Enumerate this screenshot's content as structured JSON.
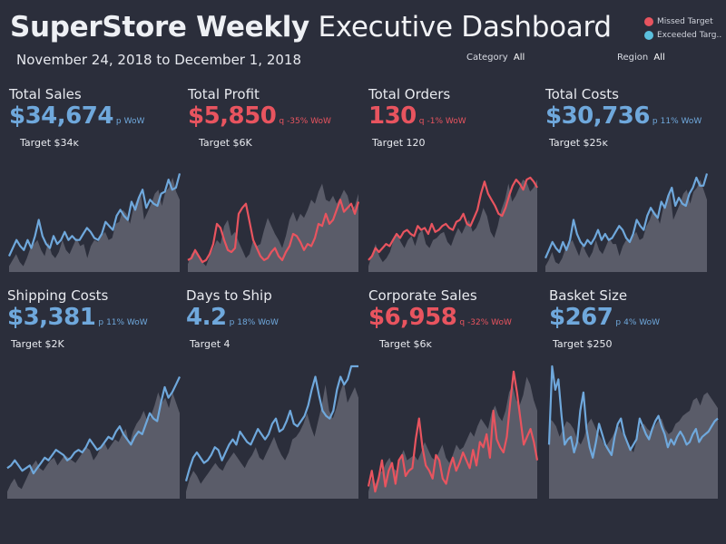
{
  "header": {
    "title_bold": "SuperStore Weekly",
    "title_light": "Executive Dashboard",
    "date_range": "November 24, 2018 to December 1, 2018"
  },
  "filters": [
    {
      "label": "Category",
      "value": "All"
    },
    {
      "label": "Region",
      "value": "All"
    }
  ],
  "legend": [
    {
      "label": "Missed Target",
      "color": "#e8545f"
    },
    {
      "label": "Exceeded Targ..",
      "color": "#5bc0de"
    }
  ],
  "colors": {
    "good": "#6fa8dc",
    "bad": "#e8545f",
    "area": "#5a5c69",
    "background": "#2b2e3b"
  },
  "kpis": [
    {
      "title": "Total Sales",
      "value": "$34,674",
      "arrow": "p",
      "delta": "WoW",
      "target": "Target $34ᴋ",
      "status": "good"
    },
    {
      "title": "Total Profit",
      "value": "$5,850",
      "arrow": "q",
      "delta": "-35% WoW",
      "target": "Target $6K",
      "status": "bad"
    },
    {
      "title": "Total Orders",
      "value": "130",
      "arrow": "q",
      "delta": "-1% WoW",
      "target": "Target 120",
      "status": "bad"
    },
    {
      "title": "Total Costs",
      "value": "$30,736",
      "arrow": "p",
      "delta": "11% WoW",
      "target": "Target $25ᴋ",
      "status": "good"
    },
    {
      "title": "Shipping Costs",
      "value": "$3,381",
      "arrow": "p",
      "delta": "11% WoW",
      "target": "Target $2K",
      "status": "good"
    },
    {
      "title": "Days to Ship",
      "value": "4.2",
      "arrow": "p",
      "delta": "18% WoW",
      "target": "Target 4",
      "status": "good"
    },
    {
      "title": "Corporate Sales",
      "value": "$6,958",
      "arrow": "q",
      "delta": "-32% WoW",
      "target": "Target $6ᴋ",
      "status": "bad"
    },
    {
      "title": "Basket Size",
      "value": "$267",
      "arrow": "p",
      "delta": "4% WoW",
      "target": "Target $250",
      "status": "good"
    }
  ],
  "chart_data": [
    {
      "type": "area",
      "chart": "Total Sales",
      "line": [
        14,
        22,
        30,
        24,
        20,
        30,
        22,
        34,
        50,
        34,
        26,
        22,
        34,
        26,
        30,
        38,
        30,
        34,
        30,
        30,
        36,
        42,
        38,
        32,
        30,
        36,
        48,
        44,
        40,
        54,
        60,
        54,
        50,
        68,
        60,
        72,
        80,
        62,
        70,
        66,
        64,
        76,
        78,
        90,
        80,
        82,
        96
      ],
      "area": [
        4,
        10,
        16,
        8,
        4,
        12,
        22,
        26,
        30,
        20,
        14,
        28,
        16,
        12,
        18,
        30,
        20,
        16,
        24,
        32,
        24,
        26,
        12,
        24,
        30,
        28,
        34,
        38,
        30,
        32,
        46,
        48,
        60,
        56,
        46,
        62,
        70,
        78,
        50,
        58,
        66,
        76,
        80,
        64,
        78,
        82,
        92,
        78,
        70
      ]
    },
    {
      "type": "area",
      "chart": "Total Profit",
      "line": [
        10,
        12,
        20,
        14,
        8,
        10,
        16,
        26,
        46,
        42,
        30,
        20,
        18,
        22,
        56,
        62,
        66,
        48,
        30,
        22,
        14,
        10,
        12,
        18,
        22,
        14,
        10,
        18,
        24,
        36,
        34,
        28,
        20,
        26,
        24,
        32,
        46,
        44,
        56,
        46,
        50,
        60,
        70,
        58,
        62,
        66,
        56,
        68
      ],
      "area": [
        6,
        16,
        20,
        12,
        8,
        4,
        14,
        22,
        30,
        26,
        44,
        50,
        34,
        38,
        28,
        20,
        12,
        16,
        30,
        24,
        26,
        40,
        52,
        44,
        36,
        30,
        22,
        34,
        50,
        58,
        48,
        56,
        52,
        60,
        70,
        66,
        78,
        86,
        70,
        68,
        74,
        66,
        72,
        80,
        74,
        60,
        64,
        76
      ]
    },
    {
      "type": "area",
      "chart": "Total Orders",
      "line": [
        10,
        14,
        22,
        18,
        22,
        26,
        24,
        30,
        36,
        32,
        38,
        40,
        36,
        34,
        44,
        40,
        42,
        36,
        46,
        38,
        40,
        44,
        46,
        42,
        40,
        48,
        50,
        56,
        46,
        44,
        52,
        60,
        76,
        88,
        76,
        70,
        64,
        56,
        54,
        62,
        74,
        84,
        90,
        86,
        80,
        90,
        92,
        88,
        82
      ],
      "area": [
        4,
        16,
        26,
        14,
        8,
        12,
        18,
        30,
        36,
        28,
        22,
        30,
        34,
        24,
        36,
        40,
        26,
        22,
        30,
        32,
        36,
        38,
        28,
        24,
        34,
        42,
        36,
        44,
        50,
        38,
        42,
        50,
        62,
        54,
        38,
        32,
        44,
        60,
        70,
        86,
        68,
        74,
        82,
        90,
        88,
        78,
        82,
        90
      ]
    },
    {
      "type": "area",
      "chart": "Total Costs",
      "line": [
        12,
        20,
        28,
        22,
        18,
        28,
        20,
        30,
        50,
        36,
        28,
        24,
        30,
        26,
        32,
        40,
        30,
        36,
        30,
        32,
        38,
        44,
        40,
        32,
        28,
        36,
        50,
        44,
        40,
        54,
        62,
        56,
        52,
        68,
        62,
        74,
        82,
        64,
        72,
        66,
        64,
        76,
        82,
        92,
        84,
        84,
        96
      ],
      "area": [
        4,
        10,
        18,
        8,
        6,
        12,
        22,
        26,
        30,
        22,
        14,
        26,
        18,
        12,
        18,
        30,
        20,
        16,
        24,
        32,
        26,
        26,
        14,
        24,
        30,
        28,
        34,
        38,
        30,
        32,
        44,
        50,
        60,
        56,
        46,
        62,
        70,
        78,
        50,
        58,
        66,
        76,
        80,
        66,
        78,
        82,
        90,
        80,
        70
      ]
    },
    {
      "type": "area",
      "chart": "Shipping Costs",
      "line": [
        22,
        24,
        28,
        24,
        20,
        22,
        24,
        18,
        22,
        26,
        30,
        28,
        32,
        36,
        34,
        32,
        28,
        30,
        34,
        36,
        34,
        38,
        44,
        40,
        36,
        38,
        42,
        46,
        44,
        50,
        54,
        48,
        44,
        40,
        46,
        50,
        48,
        56,
        64,
        60,
        58,
        72,
        84,
        76,
        80,
        86,
        92
      ],
      "area": [
        4,
        10,
        14,
        8,
        6,
        12,
        18,
        24,
        28,
        22,
        20,
        24,
        28,
        30,
        24,
        28,
        32,
        30,
        28,
        26,
        30,
        34,
        38,
        36,
        28,
        32,
        38,
        42,
        36,
        40,
        44,
        42,
        48,
        52,
        40,
        50,
        56,
        60,
        66,
        58,
        62,
        70,
        80,
        72,
        76,
        68,
        80,
        72,
        64
      ]
    },
    {
      "type": "area",
      "chart": "Days to Ship",
      "line": [
        12,
        22,
        30,
        34,
        30,
        26,
        28,
        32,
        38,
        36,
        28,
        34,
        40,
        44,
        40,
        50,
        46,
        42,
        40,
        46,
        52,
        48,
        44,
        48,
        56,
        60,
        50,
        52,
        58,
        66,
        56,
        54,
        58,
        62,
        70,
        82,
        92,
        78,
        66,
        62,
        60,
        66,
        82,
        92,
        86,
        90,
        100,
        100,
        100
      ],
      "area": [
        4,
        14,
        20,
        16,
        10,
        14,
        18,
        22,
        26,
        22,
        20,
        26,
        30,
        34,
        30,
        26,
        22,
        28,
        32,
        38,
        30,
        28,
        34,
        40,
        46,
        38,
        32,
        28,
        34,
        44,
        46,
        50,
        56,
        64,
        54,
        46,
        58,
        70,
        86,
        66,
        60,
        68,
        80,
        88,
        72,
        78,
        84,
        76
      ]
    },
    {
      "type": "area",
      "chart": "Corporate Sales",
      "line": [
        8,
        20,
        4,
        14,
        28,
        8,
        20,
        26,
        10,
        28,
        32,
        16,
        20,
        22,
        44,
        60,
        38,
        24,
        20,
        14,
        32,
        28,
        14,
        10,
        22,
        30,
        20,
        26,
        34,
        28,
        22,
        36,
        24,
        42,
        38,
        48,
        30,
        66,
        44,
        38,
        34,
        46,
        72,
        96,
        80,
        60,
        40,
        46,
        52,
        42,
        28
      ],
      "area": [
        4,
        14,
        10,
        18,
        20,
        26,
        30,
        22,
        20,
        30,
        36,
        28,
        30,
        32,
        28,
        34,
        42,
        36,
        30,
        28,
        34,
        40,
        30,
        26,
        32,
        40,
        36,
        38,
        44,
        50,
        46,
        54,
        60,
        56,
        52,
        64,
        70,
        62,
        58,
        66,
        80,
        86,
        74,
        70,
        78,
        92,
        86,
        74,
        66
      ]
    },
    {
      "type": "area",
      "chart": "Basket Size",
      "line": [
        40,
        100,
        82,
        90,
        62,
        40,
        44,
        46,
        34,
        42,
        66,
        80,
        52,
        38,
        30,
        42,
        56,
        48,
        40,
        36,
        32,
        46,
        56,
        60,
        48,
        42,
        36,
        40,
        44,
        60,
        54,
        48,
        44,
        52,
        58,
        62,
        54,
        48,
        38,
        44,
        40,
        46,
        50,
        46,
        40,
        42,
        48,
        52,
        42,
        46,
        48,
        50,
        54,
        58,
        60
      ],
      "area": [
        60,
        58,
        54,
        46,
        52,
        58,
        56,
        52,
        44,
        40,
        46,
        56,
        60,
        54,
        48,
        44,
        38,
        42,
        46,
        52,
        54,
        48,
        42,
        38,
        34,
        44,
        54,
        56,
        52,
        50,
        54,
        58,
        60,
        52,
        48,
        50,
        56,
        58,
        62,
        64,
        66,
        74,
        76,
        70,
        78,
        80,
        76,
        72,
        68
      ]
    }
  ]
}
